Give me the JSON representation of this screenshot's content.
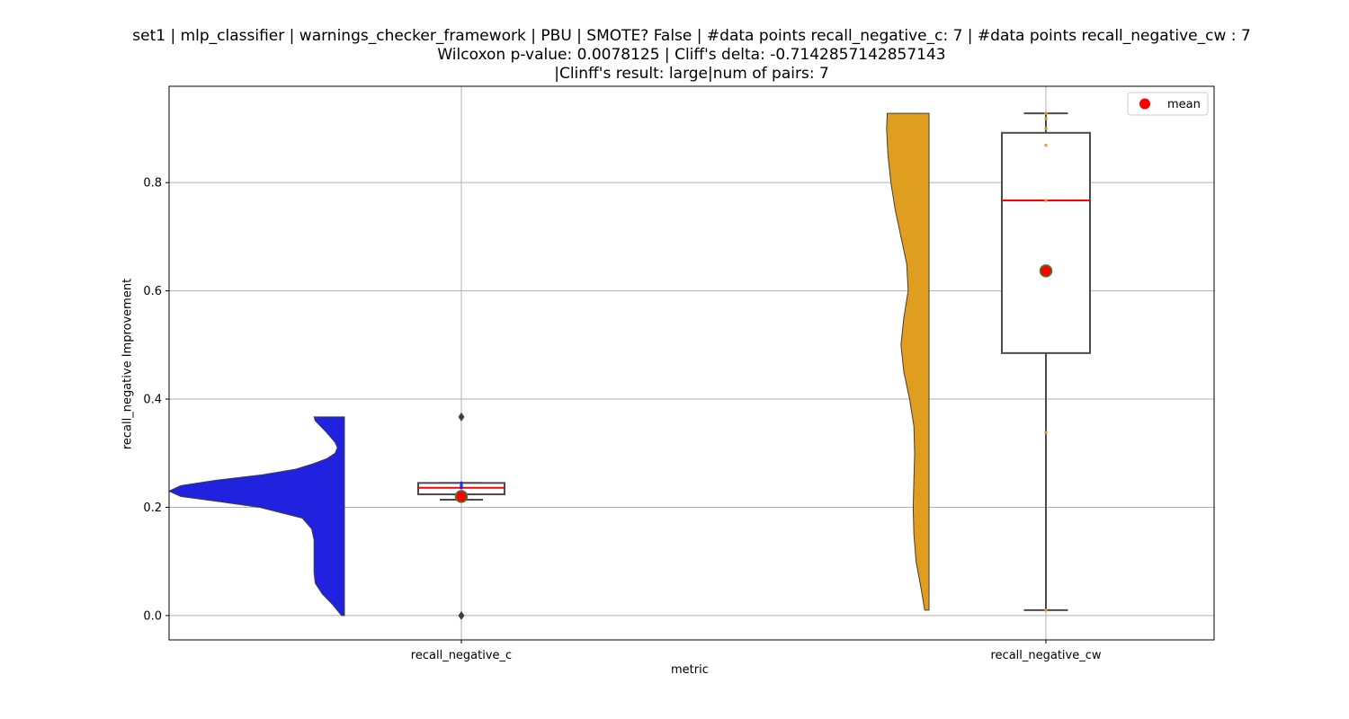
{
  "chart_data": {
    "type": "violin-box",
    "title_lines": [
      "set1 | mlp_classifier | warnings_checker_framework | PBU | SMOTE? False | #data points recall_negative_c: 7 | #data points recall_negative_cw : 7",
      "Wilcoxon p-value: 0.0078125 | Cliff's delta: -0.7142857142857143",
      "|Clinff's result: large|num of pairs: 7"
    ],
    "xlabel": "metric",
    "ylabel": "recall_negative Improvement",
    "ylim": [
      -0.045,
      0.978
    ],
    "yticks": [
      0.0,
      0.2,
      0.4,
      0.6,
      0.8
    ],
    "ytick_labels": [
      "0.0",
      "0.2",
      "0.4",
      "0.6",
      "0.8"
    ],
    "categories": [
      "recall_negative_c",
      "recall_negative_cw"
    ],
    "grid": true,
    "legend": {
      "position": "top-right",
      "entries": [
        {
          "label": "mean",
          "color": "#ff0000"
        }
      ]
    },
    "series": [
      {
        "category": "recall_negative_c",
        "violin_color": "#2121e0",
        "violin_range": [
          0.0,
          0.367
        ],
        "violin_density": [
          [
            0.0,
            0.05
          ],
          [
            0.02,
            0.2
          ],
          [
            0.04,
            0.38
          ],
          [
            0.06,
            0.5
          ],
          [
            0.08,
            0.52
          ],
          [
            0.1,
            0.52
          ],
          [
            0.12,
            0.52
          ],
          [
            0.14,
            0.52
          ],
          [
            0.16,
            0.56
          ],
          [
            0.18,
            0.72
          ],
          [
            0.2,
            1.45
          ],
          [
            0.21,
            2.1
          ],
          [
            0.22,
            2.8
          ],
          [
            0.23,
            3.0
          ],
          [
            0.24,
            2.8
          ],
          [
            0.25,
            2.2
          ],
          [
            0.26,
            1.4
          ],
          [
            0.27,
            0.85
          ],
          [
            0.28,
            0.55
          ],
          [
            0.29,
            0.3
          ],
          [
            0.3,
            0.16
          ],
          [
            0.31,
            0.12
          ],
          [
            0.32,
            0.16
          ],
          [
            0.34,
            0.32
          ],
          [
            0.36,
            0.5
          ],
          [
            0.367,
            0.52
          ]
        ],
        "box": {
          "whisker_low": 0.214,
          "q1": 0.224,
          "median": 0.236,
          "q3": 0.245,
          "whisker_high": 0.245
        },
        "fliers": [
          0.0,
          0.367
        ],
        "mean": 0.22,
        "points": [
          0.214,
          0.222,
          0.236,
          0.24,
          0.245
        ]
      },
      {
        "category": "recall_negative_cw",
        "violin_color": "#e09e21",
        "violin_range": [
          0.01,
          0.928
        ],
        "violin_density": [
          [
            0.01,
            0.3
          ],
          [
            0.05,
            0.55
          ],
          [
            0.1,
            0.9
          ],
          [
            0.15,
            1.05
          ],
          [
            0.2,
            1.1
          ],
          [
            0.25,
            1.05
          ],
          [
            0.3,
            1.0
          ],
          [
            0.35,
            1.05
          ],
          [
            0.4,
            1.35
          ],
          [
            0.45,
            1.75
          ],
          [
            0.5,
            1.95
          ],
          [
            0.55,
            1.75
          ],
          [
            0.6,
            1.45
          ],
          [
            0.65,
            1.55
          ],
          [
            0.7,
            1.95
          ],
          [
            0.75,
            2.35
          ],
          [
            0.8,
            2.65
          ],
          [
            0.85,
            2.85
          ],
          [
            0.9,
            2.95
          ],
          [
            0.928,
            2.9
          ]
        ],
        "box": {
          "whisker_low": 0.01,
          "q1": 0.485,
          "median": 0.767,
          "q3": 0.892,
          "whisker_high": 0.928
        },
        "fliers": [],
        "mean": 0.637,
        "points": [
          0.01,
          0.338,
          0.767,
          0.869,
          0.9,
          0.918,
          0.928
        ]
      }
    ]
  }
}
